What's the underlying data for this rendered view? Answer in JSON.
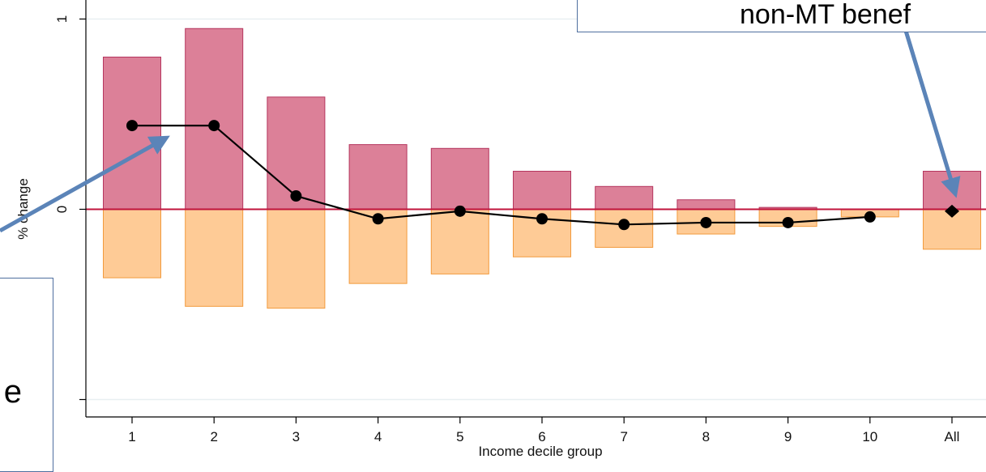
{
  "chart_data": {
    "type": "bar",
    "categories": [
      "1",
      "2",
      "3",
      "4",
      "5",
      "6",
      "7",
      "8",
      "9",
      "10",
      "All"
    ],
    "series": [
      {
        "values": [
          0.8,
          0.95,
          0.59,
          0.34,
          0.32,
          0.2,
          0.12,
          0.05,
          0.01,
          0.0,
          0.2
        ]
      },
      {
        "values": [
          -0.36,
          -0.51,
          -0.52,
          -0.39,
          -0.34,
          -0.25,
          -0.2,
          -0.13,
          -0.09,
          -0.04,
          -0.21
        ]
      },
      {
        "values": [
          0.44,
          0.44,
          0.07,
          -0.05,
          -0.01,
          -0.05,
          -0.08,
          -0.07,
          -0.07,
          -0.04,
          -0.01
        ]
      }
    ],
    "xlabel": "Income decile group",
    "ylabel": "% change",
    "yticks": [
      1,
      0
    ],
    "ylim": [
      -1,
      1
    ],
    "colors": {
      "positive_bar": "#dc8098",
      "negative_bar": "#fecb96",
      "zero_line": "#c0143c",
      "line": "#000000",
      "arrow": "#5b84b8"
    }
  },
  "annotations": {
    "right_callout": "non-MT benef",
    "left_callout": "e"
  }
}
